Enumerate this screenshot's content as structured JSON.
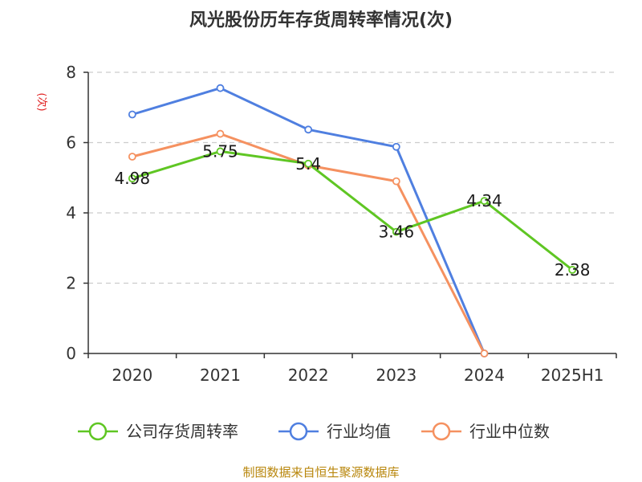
{
  "chart_data": {
    "type": "line",
    "title": "风光股份历年存货周转率情况(次)",
    "ylabel": "(次)",
    "categories": [
      "2020",
      "2021",
      "2022",
      "2023",
      "2024",
      "2025H1"
    ],
    "ylim": [
      0,
      8
    ],
    "yticks": [
      0,
      2,
      4,
      6,
      8
    ],
    "grid": true,
    "legend_position": "bottom",
    "series": [
      {
        "name": "公司存货周转率",
        "color": "#5fc623",
        "values": [
          4.98,
          5.75,
          5.4,
          3.46,
          4.34,
          2.38
        ],
        "labels": [
          "4.98",
          "5.75",
          "5.4",
          "3.46",
          "4.34",
          "2.38"
        ]
      },
      {
        "name": "行业均值",
        "color": "#4f7fe0",
        "values": [
          6.8,
          7.55,
          6.37,
          5.88,
          0,
          null
        ]
      },
      {
        "name": "行业中位数",
        "color": "#f59160",
        "values": [
          5.6,
          6.25,
          5.35,
          4.9,
          0,
          null
        ]
      }
    ],
    "source": "制图数据来自恒生聚源数据库"
  }
}
